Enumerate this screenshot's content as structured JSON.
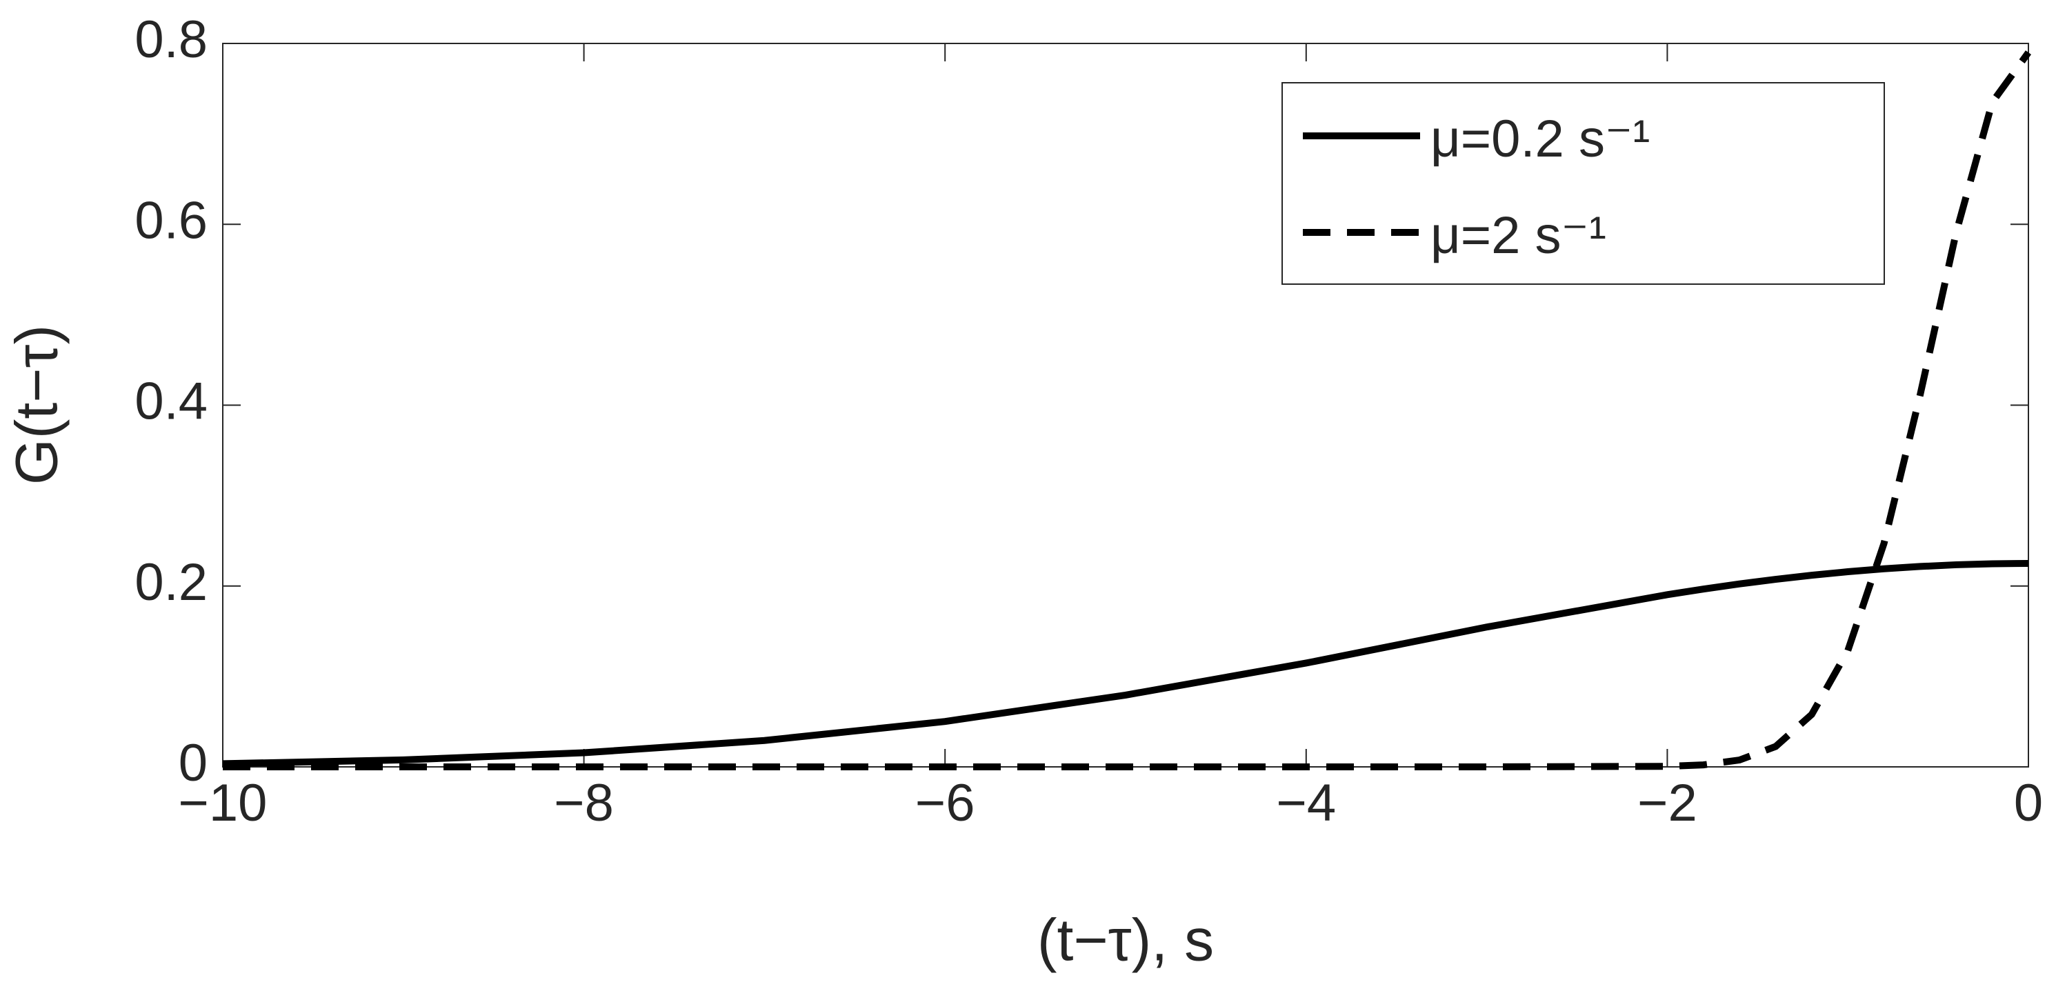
{
  "chart_data": {
    "type": "line",
    "xlabel": "(t−τ), s",
    "ylabel": "G(t−τ)",
    "x": [
      -10,
      -9,
      -8,
      -7,
      -6,
      -5,
      -4,
      -3,
      -2,
      -1.8,
      -1.6,
      -1.4,
      -1.2,
      -1,
      -0.8,
      -0.6,
      -0.4,
      -0.2,
      0
    ],
    "series": [
      {
        "name": "μ=0.2 s⁻¹",
        "color": "#000000",
        "dash": "solid",
        "values": [
          0.0035,
          0.0077,
          0.0156,
          0.0292,
          0.0502,
          0.0794,
          0.1148,
          0.1546,
          0.1904,
          0.1966,
          0.2023,
          0.2074,
          0.2119,
          0.2158,
          0.2191,
          0.2216,
          0.2235,
          0.2246,
          0.225
        ]
      },
      {
        "name": "μ=2 s⁻¹",
        "color": "#000000",
        "dash": "dashed",
        "values": [
          0,
          0,
          0,
          0,
          0,
          0,
          0,
          0,
          0.0006,
          0.0022,
          0.0076,
          0.0225,
          0.058,
          0.1286,
          0.247,
          0.411,
          0.591,
          0.735,
          0.79
        ]
      }
    ],
    "xlim": [
      -10,
      0
    ],
    "xticks": [
      {
        "value": -10,
        "label": "−10"
      },
      {
        "value": -8,
        "label": "−8"
      },
      {
        "value": -6,
        "label": "−6"
      },
      {
        "value": -4,
        "label": "−4"
      },
      {
        "value": -2,
        "label": "−2"
      },
      0
    ],
    "ylim": [
      0,
      0.8
    ],
    "yticks": [
      0,
      0.2,
      0.4,
      0.6,
      0.8
    ],
    "grid": false,
    "legend": "upper right"
  }
}
